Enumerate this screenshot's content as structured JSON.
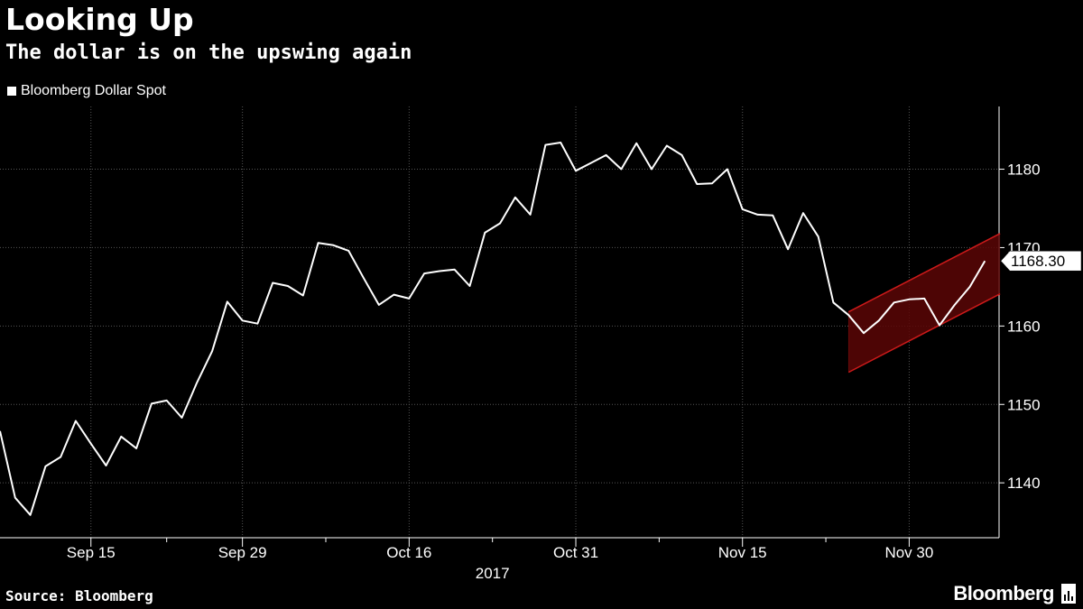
{
  "header": {
    "title": "Looking Up",
    "subtitle": "The dollar is on the upswing again"
  },
  "footer": {
    "source": "Source: Bloomberg",
    "brand": "Bloomberg"
  },
  "colors": {
    "background": "#000000",
    "series": "#ffffff",
    "grid": "#555555",
    "channel_line": "#cc1a1a",
    "channel_fill": "#5a0606"
  },
  "chart_data": {
    "type": "line",
    "legend": "Bloomberg Dollar Spot",
    "legend_position": "top-left",
    "x_year_label": "2017",
    "x_ticks": [
      "Sep 15",
      "Sep 29",
      "Oct 16",
      "Oct 31",
      "Nov 15",
      "Nov 30"
    ],
    "x_tick_index": [
      6,
      16,
      27,
      38,
      49,
      60
    ],
    "ylim": [
      1133,
      1188
    ],
    "y_ticks": [
      1140,
      1150,
      1160,
      1170,
      1180
    ],
    "y_axis_side": "right",
    "grid": true,
    "last_value_label": "1168.30",
    "series": [
      {
        "name": "Bloomberg Dollar Spot",
        "values": [
          1146.6,
          1138.1,
          1135.9,
          1142.1,
          1143.3,
          1147.9,
          1145.0,
          1142.2,
          1145.9,
          1144.4,
          1150.1,
          1150.5,
          1148.3,
          1152.8,
          1156.8,
          1163.1,
          1160.7,
          1160.3,
          1165.5,
          1165.1,
          1163.9,
          1170.6,
          1170.3,
          1169.6,
          1166.1,
          1162.7,
          1164.0,
          1163.5,
          1166.7,
          1167.0,
          1167.2,
          1165.1,
          1171.9,
          1173.1,
          1176.4,
          1174.2,
          1183.1,
          1183.4,
          1179.8,
          1180.8,
          1181.8,
          1180.0,
          1183.3,
          1180.0,
          1183.0,
          1181.8,
          1178.1,
          1178.2,
          1180.0,
          1174.9,
          1174.2,
          1174.1,
          1169.8,
          1174.4,
          1171.4,
          1163.0,
          1161.4,
          1159.1,
          1160.7,
          1163.0,
          1163.4,
          1163.5,
          1160.1,
          1162.7,
          1165.0,
          1168.3
        ]
      }
    ],
    "annotation": {
      "type": "channel",
      "start_index": 56,
      "end_index": 66,
      "upper": [
        1161.8,
        1171.8
      ],
      "lower": [
        1154.1,
        1164.1
      ]
    }
  }
}
